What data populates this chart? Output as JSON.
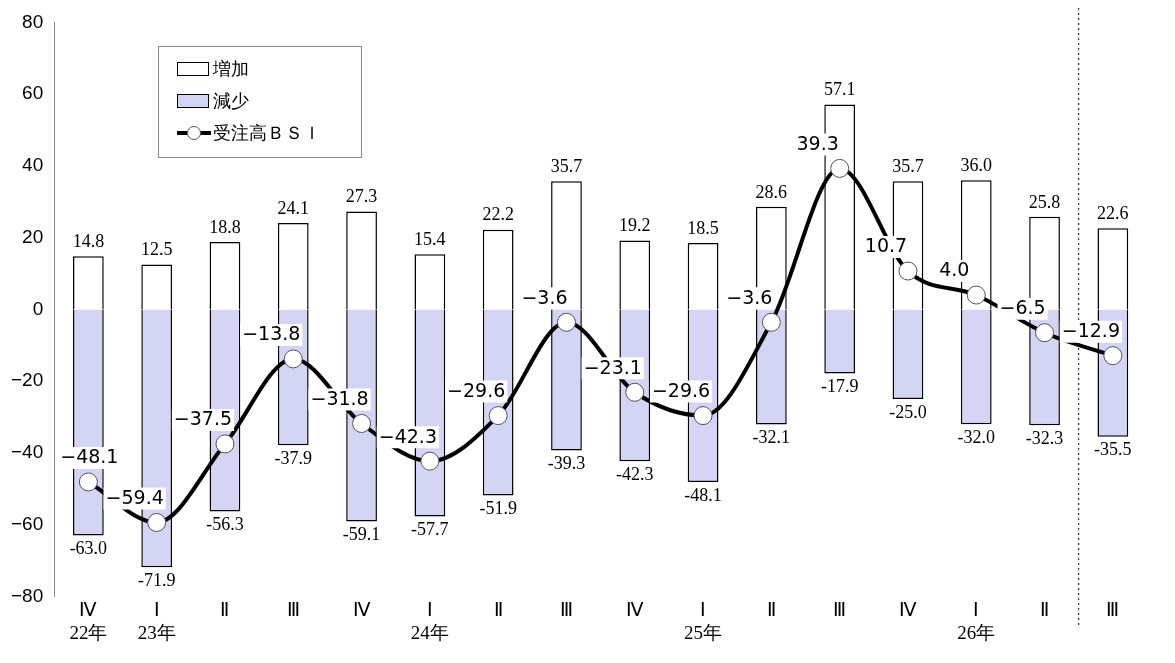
{
  "chart_data": {
    "type": "bar",
    "stacked": true,
    "categories": [
      "Ⅳ\n22年",
      "Ⅰ\n23年",
      "Ⅱ",
      "Ⅲ",
      "Ⅳ",
      "Ⅰ\n24年",
      "Ⅱ",
      "Ⅲ",
      "Ⅳ",
      "Ⅰ\n25年",
      "Ⅱ",
      "Ⅲ",
      "Ⅳ",
      "Ⅰ\n26年",
      "Ⅱ",
      "Ⅲ"
    ],
    "series": [
      {
        "name": "増加",
        "color": "#ffffff",
        "values": [
          14.8,
          12.5,
          18.8,
          24.1,
          27.3,
          15.4,
          22.2,
          35.7,
          19.2,
          18.5,
          28.6,
          57.1,
          35.7,
          36.0,
          25.8,
          22.6
        ],
        "value_labels": [
          "14.8",
          "12.5",
          "18.8",
          "24.1",
          "27.3",
          "15.4",
          "22.2",
          "35.7",
          "19.2",
          "18.5",
          "28.6",
          "57.1",
          "35.7",
          "36.0",
          "25.8",
          "22.6"
        ]
      },
      {
        "name": "減少",
        "color": "#d4d4f4",
        "values": [
          -63.0,
          -71.9,
          -56.3,
          -37.9,
          -59.1,
          -57.7,
          -51.9,
          -39.3,
          -42.3,
          -48.1,
          -32.1,
          -17.9,
          -25.0,
          -32.0,
          -32.3,
          -35.5
        ],
        "value_labels": [
          "-63.0",
          "-71.9",
          "-56.3",
          "-37.9",
          "-59.1",
          "-57.7",
          "-51.9",
          "-39.3",
          "-42.3",
          "-48.1",
          "-32.1",
          "-17.9",
          "-25.0",
          "-32.0",
          "-32.3",
          "-35.5"
        ]
      },
      {
        "name": "受注高ＢＳＩ",
        "type": "line",
        "color": "#000000",
        "values": [
          -48.1,
          -59.4,
          -37.5,
          -13.8,
          -31.8,
          -42.3,
          -29.6,
          -3.6,
          -23.1,
          -29.6,
          -3.6,
          39.3,
          10.7,
          4.0,
          -6.5,
          -12.9
        ],
        "value_labels": [
          "−48.1",
          "−59.4",
          "−37.5",
          "−13.8",
          "−31.8",
          "−42.3",
          "−29.6",
          "−3.6",
          "−23.1",
          "−29.6",
          "−3.6",
          "39.3",
          "10.7",
          "4.0",
          "−6.5",
          "−12.9"
        ]
      }
    ],
    "ylim": [
      -80,
      80
    ],
    "yticks": [
      -80,
      -60,
      -40,
      -20,
      0,
      20,
      40,
      60,
      80
    ],
    "grid": false,
    "legend": "top left",
    "marker": "circle"
  }
}
